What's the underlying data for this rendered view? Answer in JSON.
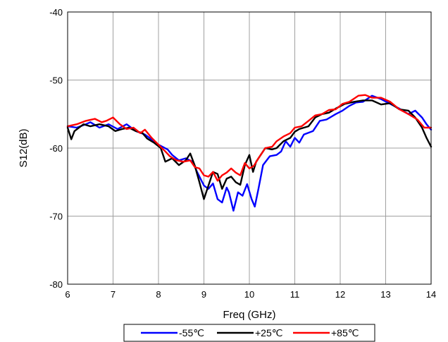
{
  "chart_data": {
    "type": "line",
    "title": "",
    "xlabel": "Freq (GHz)",
    "ylabel": "S12(dB)",
    "xlim": [
      6,
      14
    ],
    "ylim": [
      -80,
      -40
    ],
    "xticks": [
      "6",
      "7",
      "8",
      "9",
      "10",
      "11",
      "12",
      "13",
      "14"
    ],
    "yticks": [
      "-80",
      "-70",
      "-60",
      "-50",
      "-40"
    ],
    "grid": true,
    "legend_position": "bottom",
    "series": [
      {
        "name": "-55℃",
        "color": "#0000ff",
        "points": [
          [
            6.0,
            -56.8
          ],
          [
            6.2,
            -57.0
          ],
          [
            6.4,
            -56.5
          ],
          [
            6.5,
            -56.2
          ],
          [
            6.7,
            -57.0
          ],
          [
            6.9,
            -56.5
          ],
          [
            7.1,
            -57.2
          ],
          [
            7.3,
            -56.5
          ],
          [
            7.5,
            -57.5
          ],
          [
            7.7,
            -58.0
          ],
          [
            7.9,
            -59.0
          ],
          [
            8.0,
            -59.5
          ],
          [
            8.2,
            -60.2
          ],
          [
            8.3,
            -61.0
          ],
          [
            8.45,
            -61.8
          ],
          [
            8.6,
            -61.5
          ],
          [
            8.75,
            -62.0
          ],
          [
            8.85,
            -63.5
          ],
          [
            9.0,
            -65.5
          ],
          [
            9.1,
            -66.0
          ],
          [
            9.2,
            -65.2
          ],
          [
            9.3,
            -67.5
          ],
          [
            9.4,
            -68.0
          ],
          [
            9.5,
            -65.8
          ],
          [
            9.55,
            -66.5
          ],
          [
            9.65,
            -69.2
          ],
          [
            9.75,
            -66.5
          ],
          [
            9.85,
            -67.0
          ],
          [
            9.95,
            -65.3
          ],
          [
            10.05,
            -67.5
          ],
          [
            10.12,
            -68.6
          ],
          [
            10.2,
            -66.0
          ],
          [
            10.3,
            -62.5
          ],
          [
            10.45,
            -61.2
          ],
          [
            10.6,
            -61.0
          ],
          [
            10.7,
            -60.5
          ],
          [
            10.8,
            -59.0
          ],
          [
            10.9,
            -59.8
          ],
          [
            11.0,
            -58.5
          ],
          [
            11.1,
            -59.2
          ],
          [
            11.2,
            -58.0
          ],
          [
            11.4,
            -57.5
          ],
          [
            11.55,
            -56.0
          ],
          [
            11.7,
            -55.8
          ],
          [
            11.9,
            -55.0
          ],
          [
            12.05,
            -54.5
          ],
          [
            12.2,
            -53.8
          ],
          [
            12.35,
            -53.3
          ],
          [
            12.5,
            -53.2
          ],
          [
            12.7,
            -52.3
          ],
          [
            12.9,
            -52.8
          ],
          [
            13.1,
            -53.5
          ],
          [
            13.3,
            -54.2
          ],
          [
            13.5,
            -55.0
          ],
          [
            13.65,
            -54.5
          ],
          [
            13.8,
            -55.5
          ],
          [
            13.9,
            -56.5
          ],
          [
            14.0,
            -57.3
          ]
        ]
      },
      {
        "name": "+25℃",
        "color": "#000000",
        "points": [
          [
            6.0,
            -57.0
          ],
          [
            6.08,
            -58.7
          ],
          [
            6.15,
            -57.5
          ],
          [
            6.25,
            -57.0
          ],
          [
            6.35,
            -56.5
          ],
          [
            6.5,
            -56.8
          ],
          [
            6.7,
            -56.5
          ],
          [
            6.9,
            -56.8
          ],
          [
            7.05,
            -57.5
          ],
          [
            7.2,
            -57.2
          ],
          [
            7.35,
            -57.0
          ],
          [
            7.5,
            -57.5
          ],
          [
            7.65,
            -57.8
          ],
          [
            7.75,
            -58.6
          ],
          [
            7.9,
            -59.2
          ],
          [
            8.05,
            -60.0
          ],
          [
            8.15,
            -62.0
          ],
          [
            8.3,
            -61.5
          ],
          [
            8.45,
            -62.5
          ],
          [
            8.6,
            -61.8
          ],
          [
            8.7,
            -60.8
          ],
          [
            8.8,
            -62.6
          ],
          [
            8.9,
            -65.0
          ],
          [
            9.0,
            -67.5
          ],
          [
            9.1,
            -65.5
          ],
          [
            9.2,
            -63.5
          ],
          [
            9.3,
            -63.8
          ],
          [
            9.4,
            -66.0
          ],
          [
            9.5,
            -64.5
          ],
          [
            9.6,
            -64.2
          ],
          [
            9.7,
            -65.0
          ],
          [
            9.8,
            -65.4
          ],
          [
            9.9,
            -62.5
          ],
          [
            10.0,
            -61.0
          ],
          [
            10.08,
            -63.5
          ],
          [
            10.15,
            -62.0
          ],
          [
            10.25,
            -61.0
          ],
          [
            10.35,
            -60.0
          ],
          [
            10.5,
            -60.2
          ],
          [
            10.6,
            -60.0
          ],
          [
            10.75,
            -59.0
          ],
          [
            10.9,
            -58.5
          ],
          [
            11.0,
            -57.6
          ],
          [
            11.1,
            -57.2
          ],
          [
            11.3,
            -56.8
          ],
          [
            11.45,
            -55.5
          ],
          [
            11.6,
            -55.0
          ],
          [
            11.75,
            -54.8
          ],
          [
            11.9,
            -54.2
          ],
          [
            12.1,
            -53.5
          ],
          [
            12.3,
            -53.2
          ],
          [
            12.5,
            -53.0
          ],
          [
            12.7,
            -53.0
          ],
          [
            12.9,
            -53.6
          ],
          [
            13.1,
            -53.4
          ],
          [
            13.3,
            -54.3
          ],
          [
            13.5,
            -54.5
          ],
          [
            13.65,
            -55.5
          ],
          [
            13.8,
            -57.0
          ],
          [
            13.9,
            -58.5
          ],
          [
            14.0,
            -59.8
          ]
        ]
      },
      {
        "name": "+85℃",
        "color": "#ff0000",
        "points": [
          [
            6.0,
            -56.8
          ],
          [
            6.2,
            -56.5
          ],
          [
            6.4,
            -56.0
          ],
          [
            6.6,
            -55.7
          ],
          [
            6.75,
            -56.2
          ],
          [
            6.85,
            -56.0
          ],
          [
            7.0,
            -55.5
          ],
          [
            7.15,
            -56.5
          ],
          [
            7.3,
            -57.2
          ],
          [
            7.45,
            -57.0
          ],
          [
            7.6,
            -57.8
          ],
          [
            7.7,
            -57.3
          ],
          [
            7.85,
            -58.5
          ],
          [
            8.0,
            -59.5
          ],
          [
            8.15,
            -60.5
          ],
          [
            8.25,
            -61.2
          ],
          [
            8.4,
            -61.8
          ],
          [
            8.55,
            -62.0
          ],
          [
            8.7,
            -61.8
          ],
          [
            8.8,
            -62.8
          ],
          [
            8.9,
            -63.0
          ],
          [
            9.0,
            -64.0
          ],
          [
            9.1,
            -64.2
          ],
          [
            9.2,
            -63.5
          ],
          [
            9.3,
            -64.8
          ],
          [
            9.4,
            -64.0
          ],
          [
            9.5,
            -63.6
          ],
          [
            9.6,
            -63.0
          ],
          [
            9.7,
            -63.6
          ],
          [
            9.8,
            -64.0
          ],
          [
            9.9,
            -62.2
          ],
          [
            10.0,
            -63.0
          ],
          [
            10.1,
            -62.6
          ],
          [
            10.2,
            -61.5
          ],
          [
            10.35,
            -60.0
          ],
          [
            10.5,
            -59.8
          ],
          [
            10.6,
            -59.0
          ],
          [
            10.75,
            -58.3
          ],
          [
            10.9,
            -57.8
          ],
          [
            11.0,
            -57.0
          ],
          [
            11.15,
            -56.8
          ],
          [
            11.3,
            -56.0
          ],
          [
            11.45,
            -55.2
          ],
          [
            11.6,
            -55.0
          ],
          [
            11.75,
            -54.4
          ],
          [
            11.9,
            -54.3
          ],
          [
            12.05,
            -53.5
          ],
          [
            12.2,
            -53.2
          ],
          [
            12.4,
            -52.3
          ],
          [
            12.55,
            -52.2
          ],
          [
            12.7,
            -52.6
          ],
          [
            12.9,
            -52.6
          ],
          [
            13.1,
            -53.2
          ],
          [
            13.3,
            -54.3
          ],
          [
            13.5,
            -55.0
          ],
          [
            13.7,
            -55.8
          ],
          [
            13.85,
            -57.0
          ],
          [
            14.0,
            -57.0
          ]
        ]
      }
    ]
  }
}
